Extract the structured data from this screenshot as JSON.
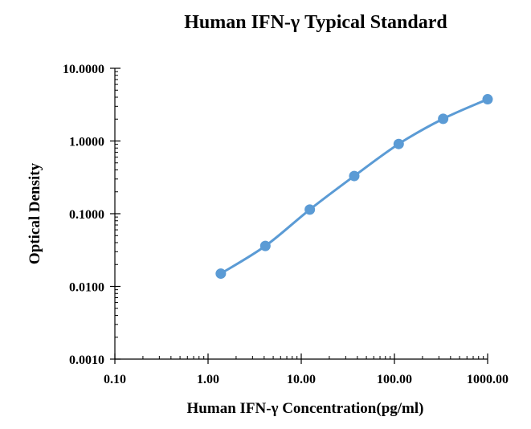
{
  "chart_data": {
    "type": "line",
    "title": "Human IFN-γ Typical Standard",
    "xlabel": "Human IFN-γ Concentration(pg/ml)",
    "ylabel": "Optical Density",
    "x_scale": "log",
    "y_scale": "log",
    "xlim": [
      0.1,
      1000
    ],
    "ylim": [
      0.001,
      10
    ],
    "x_ticks": [
      0.1,
      1,
      10,
      100,
      1000
    ],
    "x_tick_labels": [
      "0.10",
      "1.00",
      "10.00",
      "100.00",
      "1000.00"
    ],
    "y_ticks": [
      0.001,
      0.01,
      0.1,
      1,
      10
    ],
    "y_tick_labels": [
      "0.0010",
      "0.0100",
      "0.1000",
      "1.0000",
      "10.0000"
    ],
    "grid": false,
    "legend": "none",
    "series": [
      {
        "x": [
          1.37,
          4.12,
          12.35,
          37.04,
          111.11,
          333.33,
          1000
        ],
        "y": [
          0.015,
          0.036,
          0.114,
          0.33,
          0.91,
          2.02,
          3.75
        ],
        "color": "#5b9bd5",
        "marker": "circle",
        "smooth": true
      }
    ]
  }
}
